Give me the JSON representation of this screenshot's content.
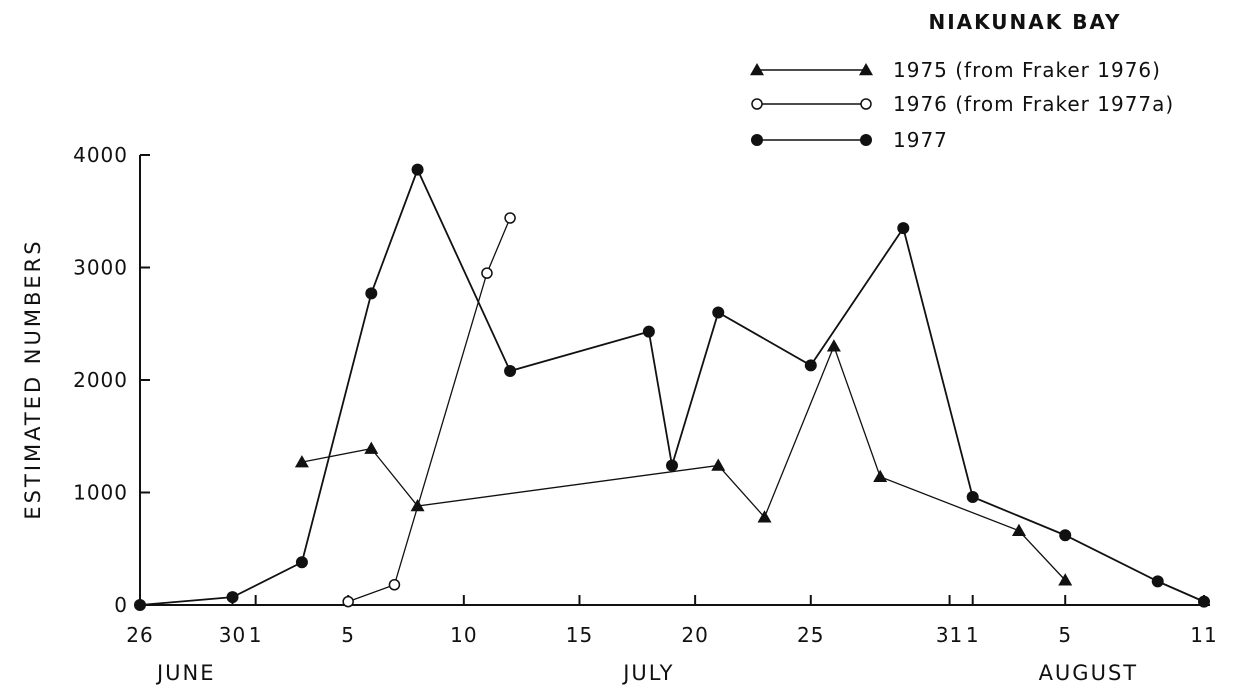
{
  "chart_data": {
    "type": "line",
    "title": "NIAKUNAK BAY",
    "ylabel": "ESTIMATED NUMBERS",
    "ylim": [
      0,
      4000
    ],
    "yticks": [
      0,
      1000,
      2000,
      3000,
      4000
    ],
    "xlim": [
      "1975-06-26",
      "1975-08-11"
    ],
    "xticks": [
      {
        "date": "1975-06-26",
        "label": "26"
      },
      {
        "date": "1975-06-30",
        "label": "30"
      },
      {
        "date": "1975-07-01",
        "label": "1"
      },
      {
        "date": "1975-07-05",
        "label": "5"
      },
      {
        "date": "1975-07-10",
        "label": "10"
      },
      {
        "date": "1975-07-15",
        "label": "15"
      },
      {
        "date": "1975-07-20",
        "label": "20"
      },
      {
        "date": "1975-07-25",
        "label": "25"
      },
      {
        "date": "1975-07-31",
        "label": "31"
      },
      {
        "date": "1975-08-01",
        "label": "1"
      },
      {
        "date": "1975-08-05",
        "label": "5"
      },
      {
        "date": "1975-08-11",
        "label": "11"
      }
    ],
    "months": [
      {
        "label": "JUNE",
        "date": "1975-06-28"
      },
      {
        "label": "JULY",
        "date": "1975-07-18"
      },
      {
        "label": "AUGUST",
        "date": "1975-08-06"
      }
    ],
    "grid": false,
    "legend_position": "top-right",
    "series": [
      {
        "name": "1975 (from Fraker 1976)",
        "marker": "triangle",
        "points": [
          {
            "x": "1975-07-03",
            "y": 1270
          },
          {
            "x": "1975-07-06",
            "y": 1390
          },
          {
            "x": "1975-07-08",
            "y": 880
          },
          {
            "x": "1975-07-21",
            "y": 1240
          },
          {
            "x": "1975-07-23",
            "y": 780
          },
          {
            "x": "1975-07-26",
            "y": 2300
          },
          {
            "x": "1975-07-28",
            "y": 1140
          },
          {
            "x": "1975-08-03",
            "y": 660
          },
          {
            "x": "1975-08-05",
            "y": 220
          }
        ]
      },
      {
        "name": "1976 (from Fraker 1977a)",
        "marker": "open-circle",
        "points": [
          {
            "x": "1975-07-05",
            "y": 30
          },
          {
            "x": "1975-07-07",
            "y": 180
          },
          {
            "x": "1975-07-11",
            "y": 2950
          },
          {
            "x": "1975-07-12",
            "y": 3440
          }
        ]
      },
      {
        "name": "1977",
        "marker": "filled-circle",
        "points": [
          {
            "x": "1975-06-26",
            "y": 0
          },
          {
            "x": "1975-06-30",
            "y": 70
          },
          {
            "x": "1975-07-03",
            "y": 380
          },
          {
            "x": "1975-07-06",
            "y": 2770
          },
          {
            "x": "1975-07-08",
            "y": 3870
          },
          {
            "x": "1975-07-12",
            "y": 2080
          },
          {
            "x": "1975-07-18",
            "y": 2430
          },
          {
            "x": "1975-07-19",
            "y": 1240
          },
          {
            "x": "1975-07-21",
            "y": 2600
          },
          {
            "x": "1975-07-25",
            "y": 2130
          },
          {
            "x": "1975-07-29",
            "y": 3350
          },
          {
            "x": "1975-08-01",
            "y": 960
          },
          {
            "x": "1975-08-05",
            "y": 620
          },
          {
            "x": "1975-08-09",
            "y": 210
          },
          {
            "x": "1975-08-11",
            "y": 30
          }
        ]
      }
    ]
  }
}
